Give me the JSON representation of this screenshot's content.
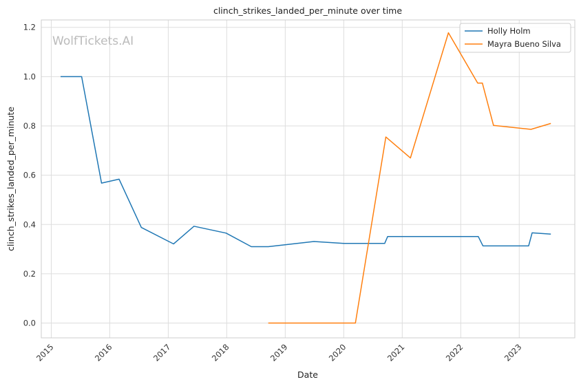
{
  "chart_data": {
    "type": "line",
    "title": "clinch_strikes_landed_per_minute over time",
    "xlabel": "Date",
    "ylabel": "clinch_strikes_landed_per_minute",
    "watermark": "WolfTickets.AI",
    "xlim": [
      2014.83,
      2023.95
    ],
    "ylim": [
      -0.06,
      1.23
    ],
    "x_ticks": [
      2015,
      2016,
      2017,
      2018,
      2019,
      2020,
      2021,
      2022,
      2023
    ],
    "x_tick_labels": [
      "2015",
      "2016",
      "2017",
      "2018",
      "2019",
      "2020",
      "2021",
      "2022",
      "2023"
    ],
    "y_ticks": [
      0.0,
      0.2,
      0.4,
      0.6,
      0.8,
      1.0,
      1.2
    ],
    "y_tick_labels": [
      "0.0",
      "0.2",
      "0.4",
      "0.6",
      "0.8",
      "1.0",
      "1.2"
    ],
    "grid": true,
    "legend_position": "top-right",
    "series": [
      {
        "name": "Holly Holm",
        "color": "#1f77b4",
        "points": [
          [
            2015.16,
            1.0
          ],
          [
            2015.52,
            1.0
          ],
          [
            2015.86,
            0.568
          ],
          [
            2016.16,
            0.584
          ],
          [
            2016.54,
            0.388
          ],
          [
            2017.09,
            0.321
          ],
          [
            2017.44,
            0.393
          ],
          [
            2017.99,
            0.365
          ],
          [
            2018.42,
            0.31
          ],
          [
            2018.71,
            0.31
          ],
          [
            2019.49,
            0.331
          ],
          [
            2020.0,
            0.323
          ],
          [
            2020.7,
            0.323
          ],
          [
            2020.75,
            0.351
          ],
          [
            2022.3,
            0.351
          ],
          [
            2022.38,
            0.313
          ],
          [
            2023.16,
            0.313
          ],
          [
            2023.22,
            0.366
          ],
          [
            2023.54,
            0.361
          ]
        ]
      },
      {
        "name": "Mayra Bueno Silva",
        "color": "#ff7f0e",
        "points": [
          [
            2018.71,
            0.0
          ],
          [
            2020.2,
            0.0
          ],
          [
            2020.72,
            0.755
          ],
          [
            2021.14,
            0.67
          ],
          [
            2021.79,
            1.178
          ],
          [
            2022.29,
            0.974
          ],
          [
            2022.37,
            0.974
          ],
          [
            2022.56,
            0.802
          ],
          [
            2023.2,
            0.786
          ],
          [
            2023.54,
            0.81
          ]
        ]
      }
    ]
  }
}
